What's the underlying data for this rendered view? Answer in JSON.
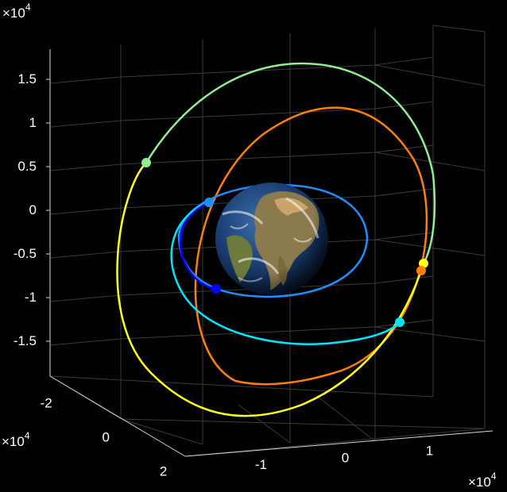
{
  "chart_data": {
    "type": "line",
    "title": "",
    "background": "#000000",
    "axes": {
      "z": {
        "ticks": [
          "1.5",
          "1",
          "0.5",
          "0",
          "-0.5",
          "-1",
          "-1.5"
        ],
        "tick_values": [
          1.5,
          1,
          0.5,
          0,
          -0.5,
          -1,
          -1.5
        ],
        "multiplier_base": "×10",
        "multiplier_exp": "4"
      },
      "y": {
        "ticks": [
          "-2",
          "0",
          "2"
        ],
        "tick_values": [
          -2,
          0,
          2
        ],
        "multiplier_base": "×10",
        "multiplier_exp": "4"
      },
      "x": {
        "ticks": [
          "-1",
          "0",
          "1"
        ],
        "tick_values": [
          -1,
          0,
          1
        ],
        "multiplier_base": "×10",
        "multiplier_exp": "4"
      }
    },
    "grid": true,
    "central_body": "earth-globe",
    "series": [
      {
        "color": "#1e8fff",
        "kind": "orbit",
        "start_color": "#1e8fff",
        "end_color": "#1e8fff"
      },
      {
        "color": "#ff7f0e",
        "kind": "orbit"
      },
      {
        "color": "#ffff1e",
        "kind": "transfer",
        "start_color": "#ffff1e",
        "end_color": "#90ee90"
      },
      {
        "color": "#90ee90",
        "kind": "transfer"
      },
      {
        "color": "#00e5ff",
        "kind": "transfer"
      },
      {
        "color": "#0000ff",
        "kind": "transfer"
      }
    ]
  }
}
